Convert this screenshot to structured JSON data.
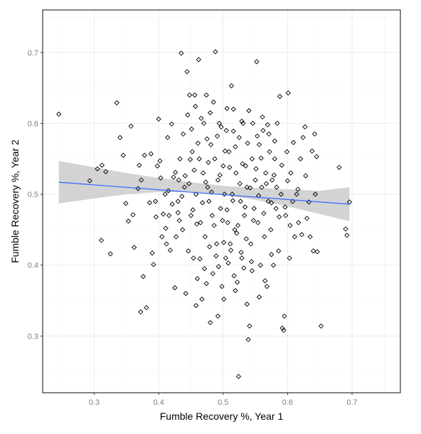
{
  "chart_data": {
    "type": "scatter",
    "title": "",
    "xlabel": "Fumble Recovery %, Year 1",
    "ylabel": "Fumble Recovery %, Year 2",
    "xlim": [
      0.22,
      0.775
    ],
    "ylim": [
      0.22,
      0.76
    ],
    "x_ticks": [
      0.3,
      0.4,
      0.5,
      0.6,
      0.7
    ],
    "y_ticks": [
      0.3,
      0.4,
      0.5,
      0.6,
      0.7
    ],
    "x_tick_labels": [
      "0.3",
      "0.4",
      "0.5",
      "0.6",
      "0.7"
    ],
    "y_tick_labels": [
      "0.3",
      "0.4",
      "0.5",
      "0.6",
      "0.7"
    ],
    "grid": true,
    "legend": "none",
    "marker": "open-diamond",
    "colors": {
      "points": "#000000",
      "trend": "#3366ff",
      "ribbon": "#d3d3d3",
      "grid": "#ebebeb",
      "tick_text": "#7f7f7f"
    },
    "trend": {
      "method": "linear",
      "x": [
        0.245,
        0.696
      ],
      "y": [
        0.517,
        0.486
      ]
    },
    "confidence_band": {
      "x": [
        0.245,
        0.3,
        0.35,
        0.4,
        0.45,
        0.5,
        0.55,
        0.6,
        0.65,
        0.696
      ],
      "lower": [
        0.487,
        0.494,
        0.5,
        0.503,
        0.503,
        0.499,
        0.492,
        0.483,
        0.472,
        0.462
      ],
      "upper": [
        0.547,
        0.538,
        0.53,
        0.523,
        0.517,
        0.512,
        0.509,
        0.507,
        0.505,
        0.51
      ]
    },
    "points": [
      [
        0.245,
        0.613
      ],
      [
        0.293,
        0.519
      ],
      [
        0.305,
        0.536
      ],
      [
        0.311,
        0.435
      ],
      [
        0.312,
        0.541
      ],
      [
        0.318,
        0.532
      ],
      [
        0.325,
        0.416
      ],
      [
        0.335,
        0.629
      ],
      [
        0.34,
        0.58
      ],
      [
        0.353,
        0.462
      ],
      [
        0.357,
        0.596
      ],
      [
        0.36,
        0.471
      ],
      [
        0.37,
        0.541
      ],
      [
        0.372,
        0.334
      ],
      [
        0.373,
        0.52
      ],
      [
        0.376,
        0.384
      ],
      [
        0.378,
        0.555
      ],
      [
        0.381,
        0.34
      ],
      [
        0.386,
        0.488
      ],
      [
        0.39,
        0.417
      ],
      [
        0.392,
        0.401
      ],
      [
        0.395,
        0.49
      ],
      [
        0.398,
        0.54
      ],
      [
        0.4,
        0.606
      ],
      [
        0.402,
        0.547
      ],
      [
        0.405,
        0.44
      ],
      [
        0.407,
        0.472
      ],
      [
        0.41,
        0.5
      ],
      [
        0.412,
        0.43
      ],
      [
        0.414,
        0.58
      ],
      [
        0.416,
        0.47
      ],
      [
        0.418,
        0.421
      ],
      [
        0.42,
        0.599
      ],
      [
        0.423,
        0.524
      ],
      [
        0.425,
        0.368
      ],
      [
        0.427,
        0.44
      ],
      [
        0.43,
        0.49
      ],
      [
        0.431,
        0.52
      ],
      [
        0.433,
        0.55
      ],
      [
        0.435,
        0.699
      ],
      [
        0.437,
        0.45
      ],
      [
        0.44,
        0.51
      ],
      [
        0.442,
        0.36
      ],
      [
        0.444,
        0.673
      ],
      [
        0.446,
        0.42
      ],
      [
        0.448,
        0.64
      ],
      [
        0.45,
        0.47
      ],
      [
        0.452,
        0.56
      ],
      [
        0.454,
        0.41
      ],
      [
        0.456,
        0.64
      ],
      [
        0.458,
        0.5
      ],
      [
        0.46,
        0.381
      ],
      [
        0.462,
        0.69
      ],
      [
        0.463,
        0.55
      ],
      [
        0.465,
        0.46
      ],
      [
        0.467,
        0.352
      ],
      [
        0.469,
        0.53
      ],
      [
        0.47,
        0.6
      ],
      [
        0.472,
        0.44
      ],
      [
        0.474,
        0.64
      ],
      [
        0.476,
        0.51
      ],
      [
        0.478,
        0.49
      ],
      [
        0.48,
        0.319
      ],
      [
        0.481,
        0.57
      ],
      [
        0.483,
        0.47
      ],
      [
        0.485,
        0.63
      ],
      [
        0.487,
        0.55
      ],
      [
        0.488,
        0.701
      ],
      [
        0.49,
        0.43
      ],
      [
        0.492,
        0.52
      ],
      [
        0.494,
        0.6
      ],
      [
        0.496,
        0.48
      ],
      [
        0.498,
        0.37
      ],
      [
        0.5,
        0.54
      ],
      [
        0.502,
        0.5
      ],
      [
        0.504,
        0.41
      ],
      [
        0.505,
        0.59
      ],
      [
        0.507,
        0.46
      ],
      [
        0.509,
        0.56
      ],
      [
        0.511,
        0.43
      ],
      [
        0.513,
        0.653
      ],
      [
        0.514,
        0.5
      ],
      [
        0.516,
        0.62
      ],
      [
        0.518,
        0.45
      ],
      [
        0.52,
        0.53
      ],
      [
        0.522,
        0.376
      ],
      [
        0.524,
        0.243
      ],
      [
        0.525,
        0.58
      ],
      [
        0.527,
        0.49
      ],
      [
        0.529,
        0.41
      ],
      [
        0.531,
        0.6
      ],
      [
        0.533,
        0.47
      ],
      [
        0.535,
        0.54
      ],
      [
        0.537,
        0.51
      ],
      [
        0.539,
        0.295
      ],
      [
        0.541,
        0.314
      ],
      [
        0.543,
        0.43
      ],
      [
        0.545,
        0.55
      ],
      [
        0.546,
        0.6
      ],
      [
        0.548,
        0.48
      ],
      [
        0.55,
        0.52
      ],
      [
        0.552,
        0.687
      ],
      [
        0.554,
        0.46
      ],
      [
        0.556,
        0.57
      ],
      [
        0.558,
        0.4
      ],
      [
        0.56,
        0.51
      ],
      [
        0.562,
        0.59
      ],
      [
        0.564,
        0.44
      ],
      [
        0.566,
        0.53
      ],
      [
        0.568,
        0.37
      ],
      [
        0.57,
        0.49
      ],
      [
        0.572,
        0.56
      ],
      [
        0.574,
        0.45
      ],
      [
        0.576,
        0.52
      ],
      [
        0.578,
        0.4
      ],
      [
        0.58,
        0.55
      ],
      [
        0.582,
        0.48
      ],
      [
        0.584,
        0.6
      ],
      [
        0.586,
        0.42
      ],
      [
        0.588,
        0.638
      ],
      [
        0.59,
        0.5
      ],
      [
        0.592,
        0.311
      ],
      [
        0.594,
        0.308
      ],
      [
        0.595,
        0.328
      ],
      [
        0.597,
        0.47
      ],
      [
        0.599,
        0.56
      ],
      [
        0.601,
        0.643
      ],
      [
        0.603,
        0.41
      ],
      [
        0.605,
        0.53
      ],
      [
        0.608,
        0.49
      ],
      [
        0.611,
        0.44
      ],
      [
        0.614,
        0.5
      ],
      [
        0.617,
        0.46
      ],
      [
        0.62,
        0.55
      ],
      [
        0.624,
        0.58
      ],
      [
        0.627,
        0.595
      ],
      [
        0.63,
        0.466
      ],
      [
        0.635,
        0.44
      ],
      [
        0.64,
        0.42
      ],
      [
        0.642,
        0.585
      ],
      [
        0.643,
        0.5
      ],
      [
        0.645,
        0.553
      ],
      [
        0.646,
        0.419
      ],
      [
        0.652,
        0.314
      ],
      [
        0.68,
        0.538
      ],
      [
        0.69,
        0.451
      ],
      [
        0.692,
        0.442
      ],
      [
        0.696,
        0.489
      ],
      [
        0.43,
        0.474
      ],
      [
        0.447,
        0.515
      ],
      [
        0.455,
        0.534
      ],
      [
        0.461,
        0.572
      ],
      [
        0.468,
        0.488
      ],
      [
        0.473,
        0.517
      ],
      [
        0.477,
        0.545
      ],
      [
        0.482,
        0.503
      ],
      [
        0.486,
        0.456
      ],
      [
        0.491,
        0.582
      ],
      [
        0.495,
        0.527
      ],
      [
        0.499,
        0.463
      ],
      [
        0.503,
        0.561
      ],
      [
        0.506,
        0.478
      ],
      [
        0.51,
        0.538
      ],
      [
        0.515,
        0.491
      ],
      [
        0.519,
        0.567
      ],
      [
        0.523,
        0.456
      ],
      [
        0.526,
        0.515
      ],
      [
        0.53,
        0.543
      ],
      [
        0.534,
        0.482
      ],
      [
        0.538,
        0.572
      ],
      [
        0.542,
        0.509
      ],
      [
        0.547,
        0.463
      ],
      [
        0.551,
        0.536
      ],
      [
        0.555,
        0.498
      ],
      [
        0.559,
        0.551
      ],
      [
        0.563,
        0.473
      ],
      [
        0.567,
        0.515
      ],
      [
        0.571,
        0.585
      ],
      [
        0.575,
        0.488
      ],
      [
        0.579,
        0.527
      ],
      [
        0.459,
        0.458
      ],
      [
        0.464,
        0.409
      ],
      [
        0.471,
        0.395
      ],
      [
        0.479,
        0.426
      ],
      [
        0.484,
        0.388
      ],
      [
        0.489,
        0.413
      ],
      [
        0.493,
        0.398
      ],
      [
        0.501,
        0.432
      ],
      [
        0.508,
        0.403
      ],
      [
        0.512,
        0.421
      ],
      [
        0.517,
        0.385
      ],
      [
        0.521,
        0.445
      ],
      [
        0.528,
        0.418
      ],
      [
        0.532,
        0.396
      ],
      [
        0.536,
        0.437
      ],
      [
        0.544,
        0.405
      ],
      [
        0.438,
        0.585
      ],
      [
        0.445,
        0.612
      ],
      [
        0.451,
        0.592
      ],
      [
        0.457,
        0.624
      ],
      [
        0.466,
        0.607
      ],
      [
        0.475,
        0.578
      ],
      [
        0.48,
        0.615
      ],
      [
        0.497,
        0.595
      ],
      [
        0.506,
        0.621
      ],
      [
        0.516,
        0.589
      ],
      [
        0.529,
        0.603
      ],
      [
        0.54,
        0.618
      ],
      [
        0.553,
        0.582
      ],
      [
        0.561,
        0.609
      ],
      [
        0.569,
        0.598
      ],
      [
        0.58,
        0.575
      ],
      [
        0.415,
        0.505
      ],
      [
        0.421,
        0.486
      ],
      [
        0.426,
        0.531
      ],
      [
        0.432,
        0.463
      ],
      [
        0.436,
        0.497
      ],
      [
        0.441,
        0.526
      ],
      [
        0.449,
        0.549
      ],
      [
        0.453,
        0.478
      ],
      [
        0.583,
        0.51
      ],
      [
        0.587,
        0.468
      ],
      [
        0.591,
        0.541
      ],
      [
        0.596,
        0.482
      ],
      [
        0.6,
        0.519
      ],
      [
        0.604,
        0.456
      ],
      [
        0.609,
        0.573
      ],
      [
        0.616,
        0.507
      ],
      [
        0.622,
        0.443
      ],
      [
        0.628,
        0.526
      ],
      [
        0.633,
        0.489
      ],
      [
        0.638,
        0.561
      ],
      [
        0.411,
        0.452
      ],
      [
        0.403,
        0.523
      ],
      [
        0.396,
        0.468
      ],
      [
        0.388,
        0.557
      ],
      [
        0.368,
        0.508
      ],
      [
        0.362,
        0.425
      ],
      [
        0.349,
        0.487
      ],
      [
        0.345,
        0.555
      ],
      [
        0.458,
        0.343
      ],
      [
        0.474,
        0.374
      ],
      [
        0.501,
        0.352
      ],
      [
        0.537,
        0.345
      ],
      [
        0.565,
        0.378
      ],
      [
        0.575,
        0.415
      ],
      [
        0.492,
        0.328
      ],
      [
        0.519,
        0.364
      ],
      [
        0.545,
        0.392
      ],
      [
        0.556,
        0.355
      ]
    ]
  }
}
